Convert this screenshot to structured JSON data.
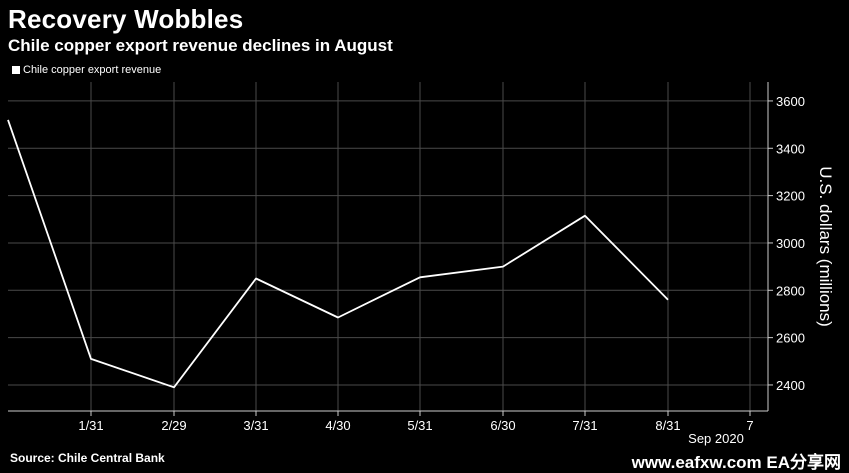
{
  "header": {
    "title": "Recovery Wobbles",
    "subtitle": "Chile copper export revenue declines in August"
  },
  "legend": {
    "label": "Chile copper export revenue"
  },
  "footer": {
    "source": "Source: Chile Central Bank",
    "watermark": "www.eafxw.com  EA分享网"
  },
  "colors": {
    "background": "#000000",
    "line": "#ffffff",
    "grid": "#4a4a4a"
  },
  "chart_data": {
    "type": "line",
    "title": "Recovery Wobbles",
    "subtitle": "Chile copper export revenue declines in August",
    "ylabel": "U.S. dollars (millions)",
    "xlabel": "Sep 2020",
    "x_ticks": [
      "1/31",
      "2/29",
      "3/31",
      "4/30",
      "5/31",
      "6/30",
      "7/31",
      "8/31",
      "7"
    ],
    "y_ticks": [
      2400,
      2600,
      2800,
      3000,
      3200,
      3400,
      3600
    ],
    "ylim": [
      2290,
      3680
    ],
    "grid": true,
    "legend_position": "top-left",
    "series": [
      {
        "name": "Chile copper export revenue",
        "x": [
          "2019-12-31",
          "2020-01-31",
          "2020-02-29",
          "2020-03-31",
          "2020-04-30",
          "2020-05-31",
          "2020-06-30",
          "2020-07-31",
          "2020-08-31"
        ],
        "values": [
          3520,
          2510,
          2390,
          2850,
          2685,
          2855,
          2900,
          3115,
          2760
        ]
      }
    ]
  }
}
